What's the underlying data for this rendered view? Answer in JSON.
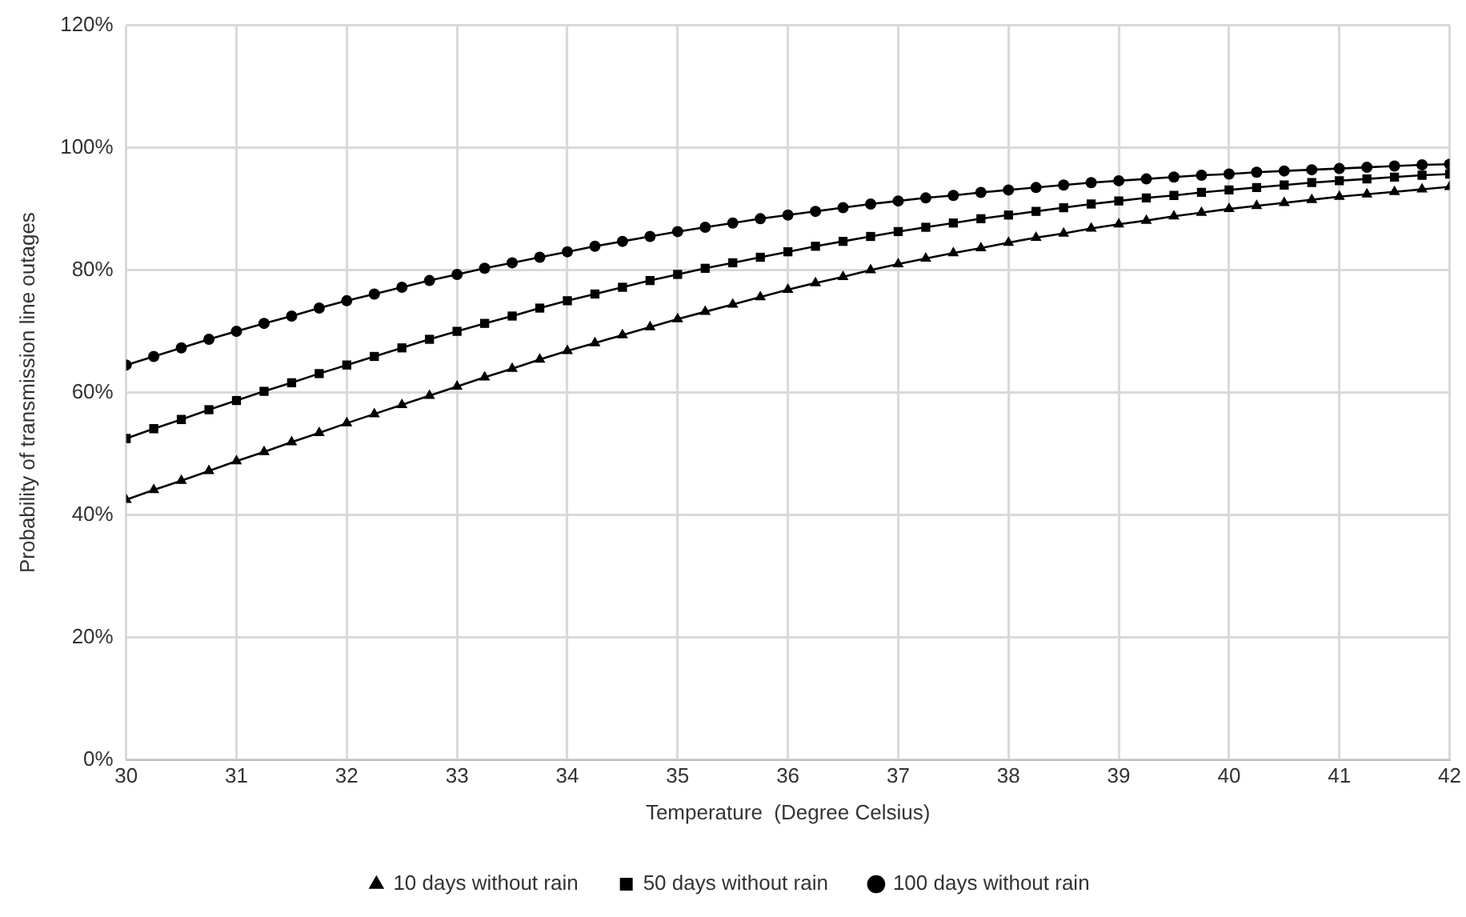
{
  "chart_data": {
    "type": "line",
    "xlabel": "Temperature  (Degree Celsius)",
    "ylabel": "Probability of transmission line outages",
    "x": [
      30,
      30.25,
      30.5,
      30.75,
      31,
      31.25,
      31.5,
      31.75,
      32,
      32.25,
      32.5,
      32.75,
      33,
      33.25,
      33.5,
      33.75,
      34,
      34.25,
      34.5,
      34.75,
      35,
      35.25,
      35.5,
      35.75,
      36,
      36.25,
      36.5,
      36.75,
      37,
      37.25,
      37.5,
      37.75,
      38,
      38.25,
      38.5,
      38.75,
      39,
      39.25,
      39.5,
      39.75,
      40,
      40.25,
      40.5,
      40.75,
      41,
      41.25,
      41.5,
      41.75,
      42
    ],
    "series": [
      {
        "name": "10 days without rain",
        "color": "#000000",
        "marker": "triangle",
        "values": [
          42.5,
          44.1,
          45.6,
          47.2,
          48.8,
          50.3,
          51.9,
          53.4,
          55,
          56.5,
          58,
          59.5,
          61,
          62.5,
          63.9,
          65.4,
          66.8,
          68.1,
          69.4,
          70.7,
          72,
          73.2,
          74.4,
          75.6,
          76.8,
          77.9,
          78.9,
          80,
          81,
          81.9,
          82.8,
          83.6,
          84.5,
          85.3,
          86,
          86.8,
          87.5,
          88.1,
          88.8,
          89.4,
          90,
          90.5,
          91,
          91.5,
          92,
          92.4,
          92.8,
          93.2,
          93.6
        ]
      },
      {
        "name": "50 days without rain",
        "color": "#000000",
        "marker": "square",
        "values": [
          52.5,
          54.1,
          55.6,
          57.2,
          58.7,
          60.2,
          61.6,
          63.1,
          64.5,
          65.9,
          67.3,
          68.7,
          70,
          71.3,
          72.5,
          73.8,
          75,
          76.1,
          77.2,
          78.3,
          79.3,
          80.3,
          81.2,
          82.1,
          83,
          83.9,
          84.7,
          85.5,
          86.3,
          87,
          87.7,
          88.4,
          89,
          89.6,
          90.2,
          90.8,
          91.3,
          91.8,
          92.2,
          92.7,
          93.1,
          93.5,
          93.9,
          94.3,
          94.6,
          94.9,
          95.2,
          95.5,
          95.7
        ]
      },
      {
        "name": "100 days without rain",
        "color": "#000000",
        "marker": "circle",
        "values": [
          64.5,
          65.9,
          67.3,
          68.7,
          70,
          71.3,
          72.5,
          73.8,
          75,
          76.1,
          77.2,
          78.3,
          79.3,
          80.3,
          81.2,
          82.1,
          83,
          83.9,
          84.7,
          85.5,
          86.3,
          87,
          87.7,
          88.4,
          89,
          89.6,
          90.2,
          90.8,
          91.3,
          91.8,
          92.2,
          92.7,
          93.1,
          93.5,
          93.9,
          94.3,
          94.6,
          94.9,
          95.2,
          95.5,
          95.7,
          96,
          96.2,
          96.4,
          96.6,
          96.8,
          97,
          97.2,
          97.3
        ]
      }
    ],
    "xlim": [
      30,
      42
    ],
    "xticks": [
      30,
      31,
      32,
      33,
      34,
      35,
      36,
      37,
      38,
      39,
      40,
      41,
      42
    ],
    "ylim": [
      0,
      120
    ],
    "yticks": [
      {
        "value": 0,
        "label": "0%"
      },
      {
        "value": 20,
        "label": "20%"
      },
      {
        "value": 40,
        "label": "40%"
      },
      {
        "value": 60,
        "label": "60%"
      },
      {
        "value": 80,
        "label": "80%"
      },
      {
        "value": 100,
        "label": "100%"
      },
      {
        "value": 120,
        "label": "120%"
      }
    ],
    "grid": true,
    "legend": "bottom"
  }
}
